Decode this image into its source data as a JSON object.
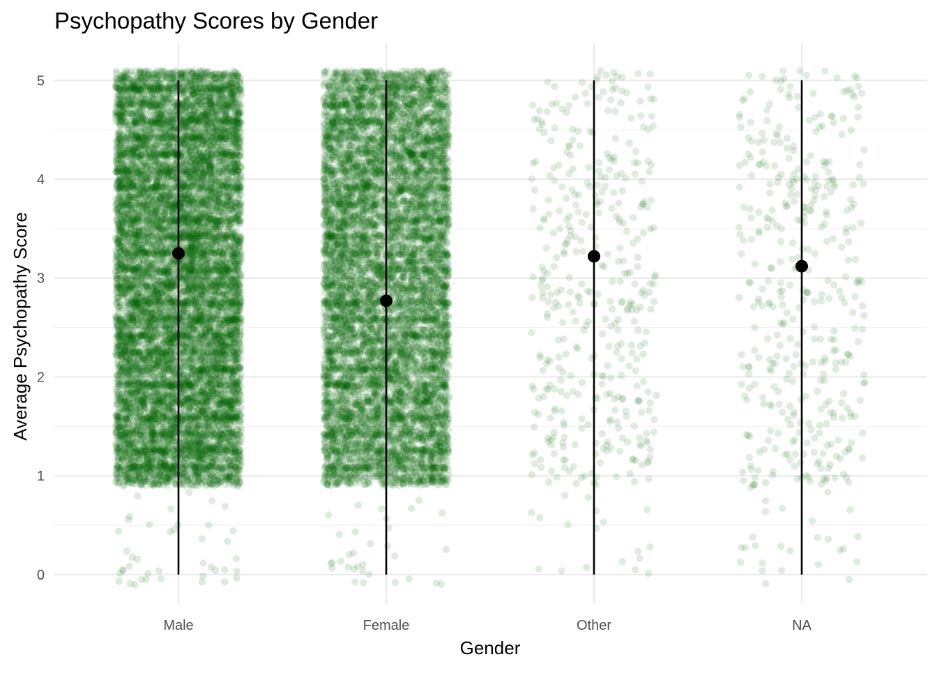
{
  "chart_data": {
    "type": "scatter",
    "title": "Psychopathy Scores by Gender",
    "xlabel": "Gender",
    "ylabel": "Average Psychopathy Score",
    "categories": [
      "Male",
      "Female",
      "Other",
      "NA"
    ],
    "ylim": [
      -0.32,
      5.36
    ],
    "yticks": [
      0,
      1,
      2,
      3,
      4,
      5
    ],
    "grid": true,
    "legend": "none",
    "point_color": "#006400",
    "point_opacity": 0.12,
    "summary_color": "#000000",
    "series": [
      {
        "category": "Male",
        "mean": 3.25,
        "range": [
          0,
          5
        ],
        "n_points_approx": 12000,
        "jittered_values": "dense band 0.9–5.1, sparse 0–0.9"
      },
      {
        "category": "Female",
        "mean": 2.77,
        "range": [
          0,
          5
        ],
        "n_points_approx": 9000,
        "jittered_values": "dense band 0.9–5.1, sparse 0–0.9"
      },
      {
        "category": "Other",
        "mean": 3.22,
        "range": [
          0,
          5
        ],
        "n_points_approx": 420
      },
      {
        "category": "NA",
        "mean": 3.12,
        "range": [
          0,
          5
        ],
        "n_points_approx": 420
      }
    ]
  }
}
